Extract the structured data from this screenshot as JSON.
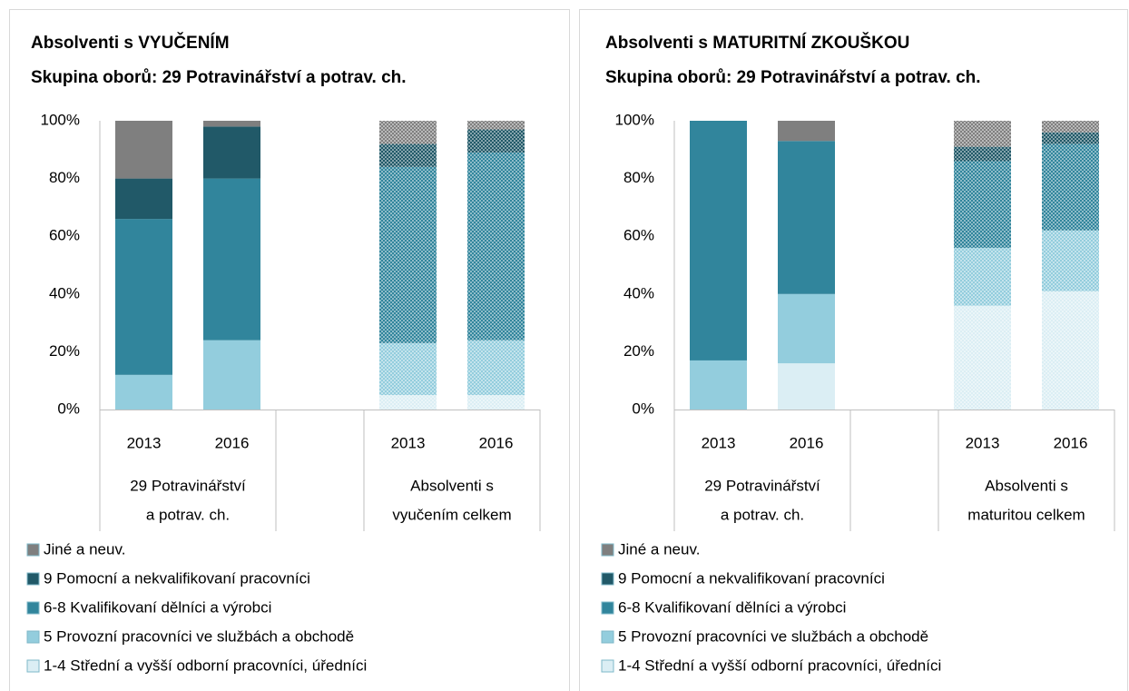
{
  "chart_data": [
    {
      "type": "bar",
      "stacked": true,
      "title": "Absolventi s VYUČENÍM",
      "subtitle": "Skupina oborů: 29 Potravinářství a potrav. ch.",
      "categories": [
        "2013",
        "2016",
        null,
        "2013",
        "2016"
      ],
      "groups": [
        {
          "label": [
            "29 Potravinářství",
            "a potrav. ch."
          ],
          "size": 2
        },
        {
          "label": null,
          "size": 1
        },
        {
          "label": [
            "Absolventi s",
            "vyučením celkem"
          ],
          "size": 2
        }
      ],
      "dotted": [
        false,
        false,
        false,
        true,
        true
      ],
      "series": [
        {
          "name": "1-4 Střední a vyšší odborní pracovníci, úředníci",
          "color": "#dbeef4",
          "values": [
            0,
            0,
            null,
            5,
            5
          ]
        },
        {
          "name": "5 Provozní pracovníci ve službách a obchodě",
          "color": "#93cddd",
          "values": [
            12,
            24,
            null,
            18,
            19
          ]
        },
        {
          "name": "6-8 Kvalifikovaní dělníci a výrobci",
          "color": "#31859c",
          "values": [
            54,
            56,
            null,
            61,
            65
          ]
        },
        {
          "name": "9 Pomocní a nekvalifikovaní pracovníci",
          "color": "#215968",
          "values": [
            14,
            18,
            null,
            8,
            8
          ]
        },
        {
          "name": "Jiné a neuv.",
          "color": "#7f7f7f",
          "values": [
            20,
            2,
            null,
            8,
            3
          ]
        }
      ],
      "ylim": [
        0,
        100
      ],
      "yticks": [
        {
          "value": 0,
          "label": "0%"
        },
        {
          "value": 20,
          "label": "20%"
        },
        {
          "value": 40,
          "label": "40%"
        },
        {
          "value": 60,
          "label": "60%"
        },
        {
          "value": 80,
          "label": "80%"
        },
        {
          "value": 100,
          "label": "100%"
        }
      ],
      "grid": false
    },
    {
      "type": "bar",
      "stacked": true,
      "title": "Absolventi s MATURITNÍ ZKOUŠKOU",
      "subtitle": "Skupina oborů: 29 Potravinářství a potrav. ch.",
      "categories": [
        "2013",
        "2016",
        null,
        "2013",
        "2016"
      ],
      "groups": [
        {
          "label": [
            "29 Potravinářství",
            "a potrav. ch."
          ],
          "size": 2
        },
        {
          "label": null,
          "size": 1
        },
        {
          "label": [
            "Absolventi s",
            "maturitou celkem"
          ],
          "size": 2
        }
      ],
      "dotted": [
        false,
        false,
        false,
        true,
        true
      ],
      "series": [
        {
          "name": "1-4 Střední a vyšší odborní pracovníci, úředníci",
          "color": "#dbeef4",
          "values": [
            0,
            16,
            null,
            36,
            41
          ]
        },
        {
          "name": "5 Provozní pracovníci ve službách a obchodě",
          "color": "#93cddd",
          "values": [
            17,
            24,
            null,
            20,
            21
          ]
        },
        {
          "name": "6-8 Kvalifikovaní dělníci a výrobci",
          "color": "#31859c",
          "values": [
            83,
            53,
            null,
            30,
            30
          ]
        },
        {
          "name": "9 Pomocní a nekvalifikovaní pracovníci",
          "color": "#215968",
          "values": [
            0,
            0,
            null,
            5,
            4
          ]
        },
        {
          "name": "Jiné a neuv.",
          "color": "#7f7f7f",
          "values": [
            0,
            7,
            null,
            9,
            4
          ]
        }
      ],
      "ylim": [
        0,
        100
      ],
      "yticks": [
        {
          "value": 0,
          "label": "0%"
        },
        {
          "value": 20,
          "label": "20%"
        },
        {
          "value": 40,
          "label": "40%"
        },
        {
          "value": 60,
          "label": "60%"
        },
        {
          "value": 80,
          "label": "80%"
        },
        {
          "value": 100,
          "label": "100%"
        }
      ],
      "grid": false
    }
  ]
}
